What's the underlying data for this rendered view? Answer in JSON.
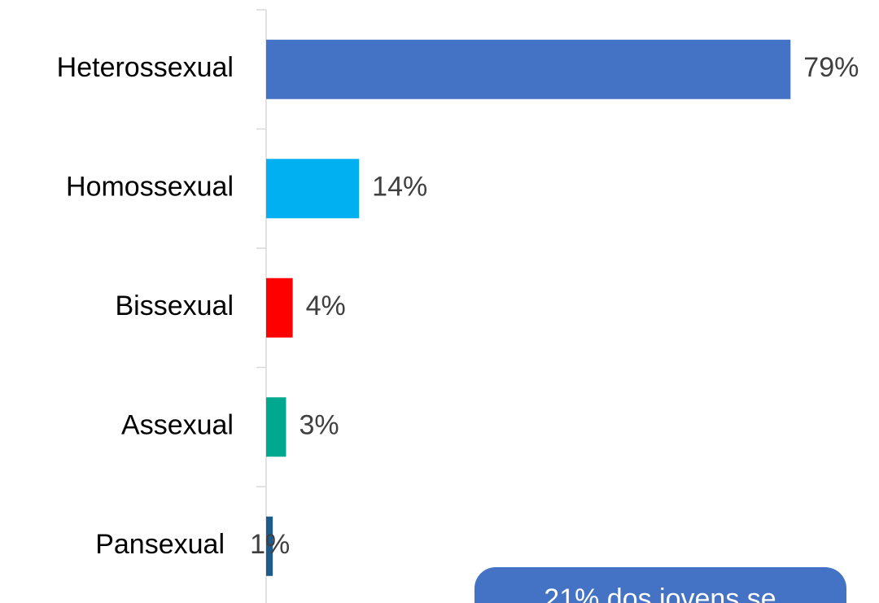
{
  "chart_data": {
    "type": "bar",
    "orientation": "horizontal",
    "categories": [
      "Heterossexual",
      "Homossexual",
      "Bissexual",
      "Assexual",
      "Pansexual"
    ],
    "values": [
      79,
      14,
      4,
      3,
      1
    ],
    "value_labels": [
      "79%",
      "14%",
      "4%",
      "3%",
      "1%"
    ],
    "colors": [
      "#4472c4",
      "#00b0f0",
      "#ff0000",
      "#00a88f",
      "#1f5a8c"
    ],
    "xlim": [
      0,
      90
    ],
    "annotation": "21% dos jovens se"
  }
}
